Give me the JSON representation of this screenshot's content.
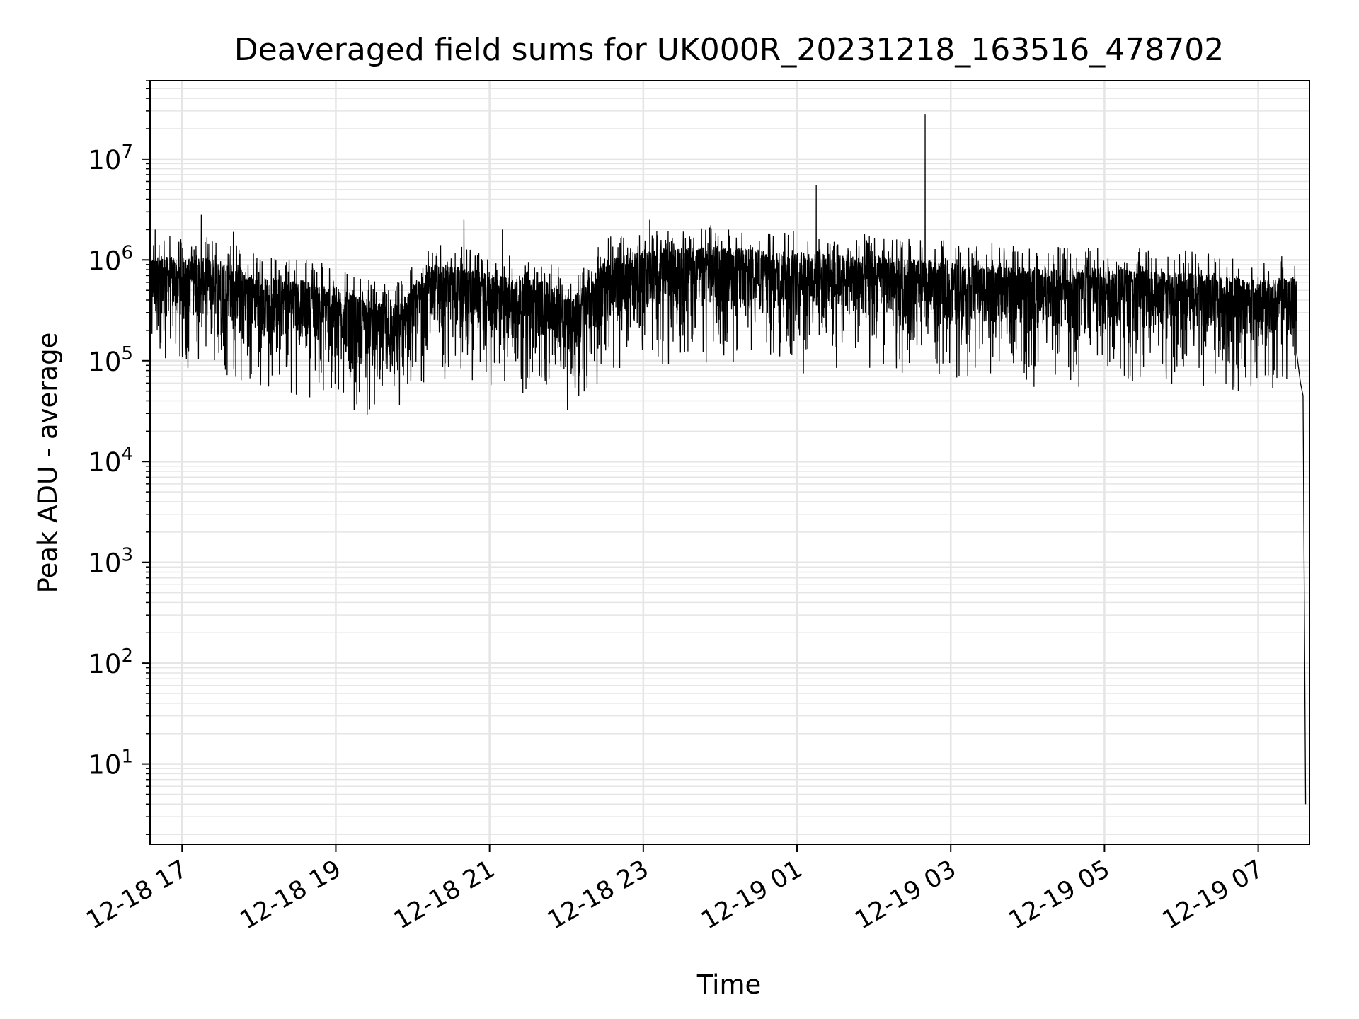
{
  "chart_data": {
    "type": "line",
    "title": "Deaveraged field sums for UK000R_20231218_163516_478702",
    "xlabel": "Time",
    "ylabel": "Peak ADU - average",
    "yscale": "log",
    "ylim": [
      1.6,
      60000000.0
    ],
    "xlim": [
      "2023-12-18 16:35",
      "2023-12-19 07:40"
    ],
    "grid": true,
    "line_color": "#000000",
    "grid_color": "#e5e5e5",
    "x_ticks": [
      {
        "t": "2023-12-18 17:00",
        "label": "12-18 17"
      },
      {
        "t": "2023-12-18 19:00",
        "label": "12-18 19"
      },
      {
        "t": "2023-12-18 21:00",
        "label": "12-18 21"
      },
      {
        "t": "2023-12-18 23:00",
        "label": "12-18 23"
      },
      {
        "t": "2023-12-19 01:00",
        "label": "12-19 01"
      },
      {
        "t": "2023-12-19 03:00",
        "label": "12-19 03"
      },
      {
        "t": "2023-12-19 05:00",
        "label": "12-19 05"
      },
      {
        "t": "2023-12-19 07:00",
        "label": "12-19 07"
      }
    ],
    "y_ticks": [
      {
        "value": 10,
        "base": "10",
        "exp": "1"
      },
      {
        "value": 100,
        "base": "10",
        "exp": "2"
      },
      {
        "value": 1000,
        "base": "10",
        "exp": "3"
      },
      {
        "value": 10000,
        "base": "10",
        "exp": "4"
      },
      {
        "value": 100000,
        "base": "10",
        "exp": "5"
      },
      {
        "value": 1000000,
        "base": "10",
        "exp": "6"
      },
      {
        "value": 10000000,
        "base": "10",
        "exp": "7"
      }
    ],
    "series": [
      {
        "baseline": [
          {
            "t": "2023-12-18 16:35",
            "v": 650000
          },
          {
            "t": "2023-12-18 17:30",
            "v": 600000
          },
          {
            "t": "2023-12-18 18:00",
            "v": 400000
          },
          {
            "t": "2023-12-18 18:30",
            "v": 380000
          },
          {
            "t": "2023-12-18 19:00",
            "v": 320000
          },
          {
            "t": "2023-12-18 19:30",
            "v": 220000
          },
          {
            "t": "2023-12-18 19:50",
            "v": 220000
          },
          {
            "t": "2023-12-18 20:15",
            "v": 550000
          },
          {
            "t": "2023-12-18 20:40",
            "v": 500000
          },
          {
            "t": "2023-12-18 21:00",
            "v": 420000
          },
          {
            "t": "2023-12-18 21:40",
            "v": 380000
          },
          {
            "t": "2023-12-18 22:05",
            "v": 250000
          },
          {
            "t": "2023-12-18 22:30",
            "v": 600000
          },
          {
            "t": "2023-12-18 23:00",
            "v": 750000
          },
          {
            "t": "2023-12-19 00:00",
            "v": 800000
          },
          {
            "t": "2023-12-19 01:00",
            "v": 700000
          },
          {
            "t": "2023-12-19 02:00",
            "v": 650000
          },
          {
            "t": "2023-12-19 03:00",
            "v": 550000
          },
          {
            "t": "2023-12-19 04:00",
            "v": 500000
          },
          {
            "t": "2023-12-19 05:00",
            "v": 500000
          },
          {
            "t": "2023-12-19 06:00",
            "v": 450000
          },
          {
            "t": "2023-12-19 07:00",
            "v": 380000
          },
          {
            "t": "2023-12-19 07:30",
            "v": 400000
          }
        ],
        "points": [
          {
            "t": "2023-12-18 16:39",
            "v": 2000000
          },
          {
            "t": "2023-12-18 17:15",
            "v": 2800000
          },
          {
            "t": "2023-12-18 17:40",
            "v": 1900000
          },
          {
            "t": "2023-12-18 20:40",
            "v": 2500000
          },
          {
            "t": "2023-12-18 21:10",
            "v": 2000000
          },
          {
            "t": "2023-12-18 23:05",
            "v": 2500000
          },
          {
            "t": "2023-12-19 01:15",
            "v": 5500000
          },
          {
            "t": "2023-12-19 02:40",
            "v": 28000000
          },
          {
            "t": "2023-12-19 01:05",
            "v": 75000
          },
          {
            "t": "2023-12-18 19:30",
            "v": 55000
          },
          {
            "t": "2023-12-19 04:05",
            "v": 55000
          },
          {
            "t": "2023-12-19 04:40",
            "v": 55000
          },
          {
            "t": "2023-12-19 07:30",
            "v": 120000
          },
          {
            "t": "2023-12-19 07:33",
            "v": 60000
          },
          {
            "t": "2023-12-19 07:35",
            "v": 45000
          },
          {
            "t": "2023-12-19 07:37",
            "v": 4
          }
        ]
      }
    ]
  }
}
